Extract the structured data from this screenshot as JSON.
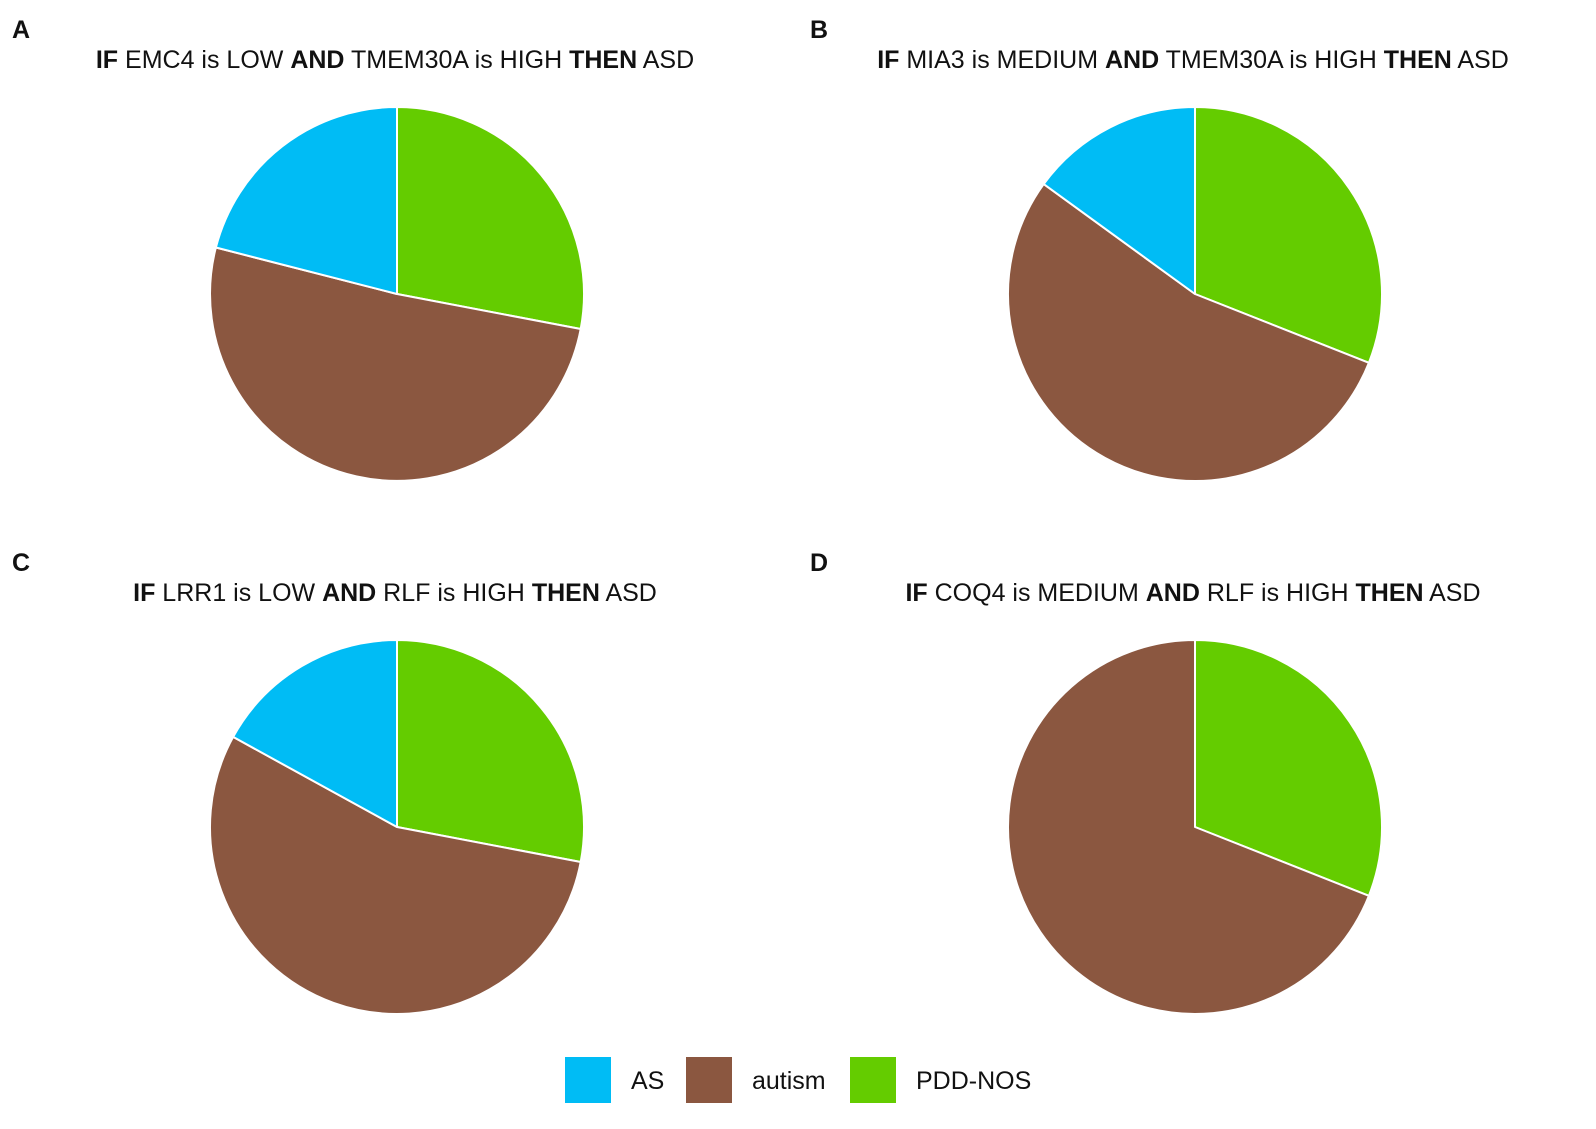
{
  "colors": {
    "AS": "#00bcf5",
    "autism": "#8b5740",
    "PDD-NOS": "#64cc00"
  },
  "chart_data": [
    {
      "type": "pie",
      "panel": "A",
      "title_parts": [
        {
          "text": "IF",
          "bold": true
        },
        {
          "text": " EMC4 is LOW ",
          "bold": false
        },
        {
          "text": "AND",
          "bold": true
        },
        {
          "text": " TMEM30A is HIGH ",
          "bold": false
        },
        {
          "text": "THEN",
          "bold": true
        },
        {
          "text": " ASD",
          "bold": false
        }
      ],
      "slices": [
        {
          "label": "PDD-NOS",
          "value": 28
        },
        {
          "label": "autism",
          "value": 51
        },
        {
          "label": "AS",
          "value": 21
        }
      ]
    },
    {
      "type": "pie",
      "panel": "B",
      "title_parts": [
        {
          "text": "IF",
          "bold": true
        },
        {
          "text": " MIA3 is MEDIUM ",
          "bold": false
        },
        {
          "text": "AND",
          "bold": true
        },
        {
          "text": " TMEM30A is HIGH ",
          "bold": false
        },
        {
          "text": "THEN",
          "bold": true
        },
        {
          "text": " ASD",
          "bold": false
        }
      ],
      "slices": [
        {
          "label": "PDD-NOS",
          "value": 31
        },
        {
          "label": "autism",
          "value": 54
        },
        {
          "label": "AS",
          "value": 15
        }
      ]
    },
    {
      "type": "pie",
      "panel": "C",
      "title_parts": [
        {
          "text": "IF",
          "bold": true
        },
        {
          "text": " LRR1 is LOW ",
          "bold": false
        },
        {
          "text": "AND",
          "bold": true
        },
        {
          "text": " RLF is HIGH ",
          "bold": false
        },
        {
          "text": "THEN",
          "bold": true
        },
        {
          "text": " ASD",
          "bold": false
        }
      ],
      "slices": [
        {
          "label": "PDD-NOS",
          "value": 28
        },
        {
          "label": "autism",
          "value": 55
        },
        {
          "label": "AS",
          "value": 17
        }
      ]
    },
    {
      "type": "pie",
      "panel": "D",
      "title_parts": [
        {
          "text": "IF",
          "bold": true
        },
        {
          "text": " COQ4 is MEDIUM ",
          "bold": false
        },
        {
          "text": "AND",
          "bold": true
        },
        {
          "text": " RLF is HIGH ",
          "bold": false
        },
        {
          "text": "THEN",
          "bold": true
        },
        {
          "text": " ASD",
          "bold": false
        }
      ],
      "slices": [
        {
          "label": "PDD-NOS",
          "value": 31
        },
        {
          "label": "autism",
          "value": 69
        },
        {
          "label": "AS",
          "value": 0
        }
      ]
    }
  ],
  "legend": [
    "AS",
    "autism",
    "PDD-NOS"
  ]
}
